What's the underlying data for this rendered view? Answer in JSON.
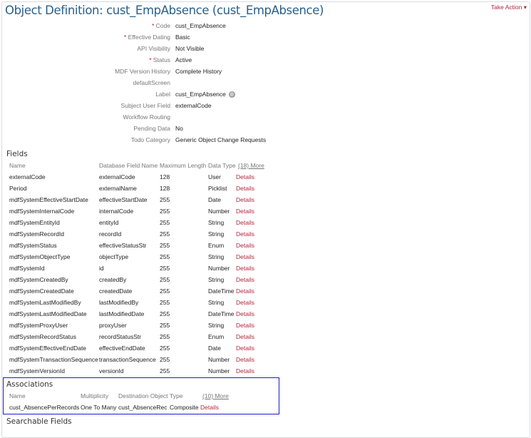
{
  "title": "Object Definition: cust_EmpAbsence (cust_EmpAbsence)",
  "take_action": "Take Action",
  "properties": [
    {
      "label": "Code",
      "required": true,
      "value": "cust_EmpAbsence"
    },
    {
      "label": "Effective Dating",
      "required": true,
      "value": "Basic"
    },
    {
      "label": "API Visibility",
      "required": false,
      "value": "Not Visible"
    },
    {
      "label": "Status",
      "required": true,
      "value": "Active"
    },
    {
      "label": "MDF Version History",
      "required": false,
      "value": "Complete History"
    },
    {
      "label": "defaultScreen",
      "required": false,
      "value": ""
    },
    {
      "label": "Label",
      "required": false,
      "value": "cust_EmpAbsence",
      "icon": "globe-icon"
    },
    {
      "label": "Subject User Field",
      "required": false,
      "value": "externalCode"
    },
    {
      "label": "Workflow Routing",
      "required": false,
      "value": ""
    },
    {
      "label": "Pending Data",
      "required": false,
      "value": "No"
    },
    {
      "label": "Todo Category",
      "required": false,
      "value": "Generic Object Change Requests"
    }
  ],
  "fields": {
    "heading": "Fields",
    "columns": [
      "Name",
      "Database Field Name",
      "Maximum Length",
      "Data Type"
    ],
    "more": "(18) More",
    "details_label": "Details",
    "rows": [
      [
        "externalCode",
        "externalCode",
        "128",
        "User"
      ],
      [
        "Period",
        "externalName",
        "128",
        "Picklist"
      ],
      [
        "mdfSystemEffectiveStartDate",
        "effectiveStartDate",
        "255",
        "Date"
      ],
      [
        "mdfSystemInternalCode",
        "internalCode",
        "255",
        "Number"
      ],
      [
        "mdfSystemEntityId",
        "entityId",
        "255",
        "String"
      ],
      [
        "mdfSystemRecordId",
        "recordId",
        "255",
        "String"
      ],
      [
        "mdfSystemStatus",
        "effectiveStatusStr",
        "255",
        "Enum"
      ],
      [
        "mdfSystemObjectType",
        "objectType",
        "255",
        "String"
      ],
      [
        "mdfSystemId",
        "id",
        "255",
        "Number"
      ],
      [
        "mdfSystemCreatedBy",
        "createdBy",
        "255",
        "String"
      ],
      [
        "mdfSystemCreatedDate",
        "createdDate",
        "255",
        "DateTime"
      ],
      [
        "mdfSystemLastModifiedBy",
        "lastModifiedBy",
        "255",
        "String"
      ],
      [
        "mdfSystemLastModifiedDate",
        "lastModifiedDate",
        "255",
        "DateTime"
      ],
      [
        "mdfSystemProxyUser",
        "proxyUser",
        "255",
        "String"
      ],
      [
        "mdfSystemRecordStatus",
        "recordStatusStr",
        "255",
        "Enum"
      ],
      [
        "mdfSystemEffectiveEndDate",
        "effectiveEndDate",
        "255",
        "Date"
      ],
      [
        "mdfSystemTransactionSequence",
        "transactionSequence",
        "255",
        "Number"
      ],
      [
        "mdfSystemVersionId",
        "versionId",
        "255",
        "Number"
      ]
    ]
  },
  "associations": {
    "heading": "Associations",
    "columns": [
      "Name",
      "Multiplicity",
      "Destination Object",
      "Type"
    ],
    "more": "(10) More",
    "details_label": "Details",
    "rows": [
      [
        "cust_AbsencePerRecords",
        "One To Many",
        "cust_AbsenceRec",
        "Composite"
      ]
    ]
  },
  "searchable_heading": "Searchable Fields",
  "colors": {
    "title": "#2b5f86",
    "link": "#b0283f",
    "highlight": "#1a1acc"
  }
}
